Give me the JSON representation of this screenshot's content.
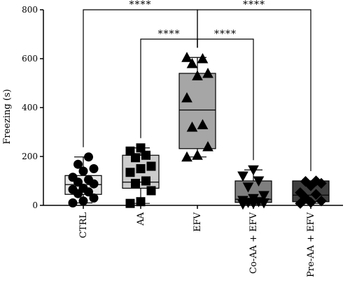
{
  "chart_data": {
    "type": "box",
    "ylabel": "Freezing (s)",
    "xlabel": "",
    "ylim": [
      0,
      800
    ],
    "yticks": [
      0,
      200,
      400,
      600,
      800
    ],
    "groups": [
      {
        "name": "CTRL",
        "fill": "#e6e6e6",
        "marker": "circle",
        "box": {
          "min": 10,
          "q1": 45,
          "median": 85,
          "q3": 122,
          "max": 198
        },
        "points": [
          10,
          18,
          30,
          48,
          55,
          65,
          70,
          88,
          95,
          105,
          115,
          140,
          150,
          168,
          198
        ]
      },
      {
        "name": "AA",
        "fill": "#cccccc",
        "marker": "square",
        "box": {
          "min": 8,
          "q1": 70,
          "median": 95,
          "q3": 205,
          "max": 235
        },
        "points": [
          8,
          15,
          60,
          90,
          100,
          135,
          150,
          160,
          195,
          205,
          222,
          235
        ]
      },
      {
        "name": "EFV",
        "fill": "#a6a6a6",
        "marker": "triangle-up",
        "box": {
          "min": 198,
          "q1": 232,
          "median": 390,
          "q3": 540,
          "max": 605
        },
        "points": [
          198,
          205,
          240,
          320,
          330,
          440,
          530,
          540,
          580,
          600,
          605
        ]
      },
      {
        "name": "Co-AA + EFV",
        "fill": "#7f7f7f",
        "marker": "triangle-down",
        "box": {
          "min": 5,
          "q1": 12,
          "median": 25,
          "q3": 100,
          "max": 145
        },
        "points": [
          5,
          8,
          10,
          12,
          15,
          20,
          28,
          40,
          75,
          100,
          120,
          145
        ]
      },
      {
        "name": "Pre-AA + EFV",
        "fill": "#404040",
        "marker": "diamond",
        "box": {
          "min": 8,
          "q1": 15,
          "median": 42,
          "q3": 100,
          "max": 100
        },
        "points": [
          8,
          12,
          18,
          30,
          45,
          52,
          80,
          90,
          98,
          100
        ]
      }
    ],
    "significance": [
      {
        "from": "CTRL",
        "to": "EFV",
        "label": "****",
        "level": 800
      },
      {
        "from": "AA",
        "to": "EFV",
        "label": "****",
        "level": 680
      },
      {
        "from": "EFV",
        "to": "Co-AA + EFV",
        "label": "****",
        "level": 680
      },
      {
        "from": "EFV",
        "to": "Pre-AA + EFV",
        "label": "****",
        "level": 800
      }
    ],
    "grid": false,
    "legend": "none"
  }
}
